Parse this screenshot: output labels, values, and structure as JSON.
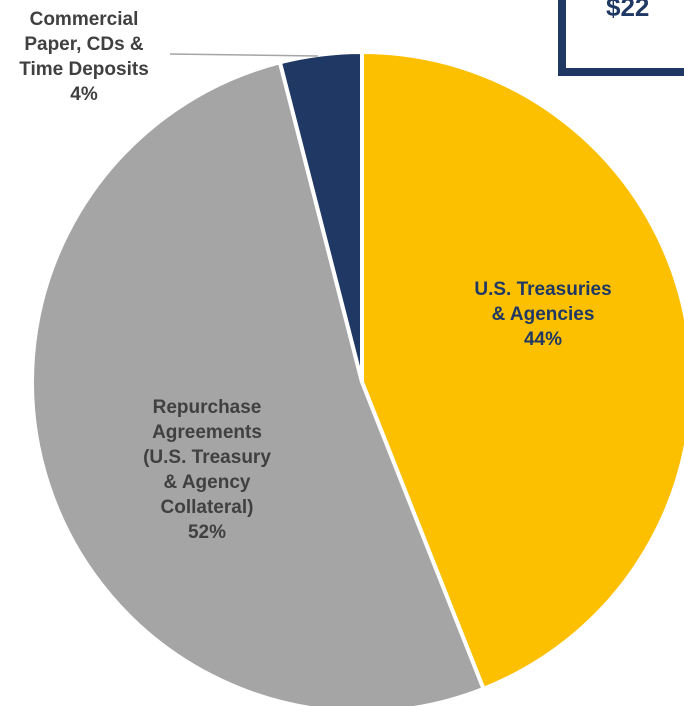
{
  "header": {
    "total_label": "$22"
  },
  "colors": {
    "treasuries": "#fcc000",
    "repo": "#a5a5a5",
    "commercial": "#1f3864",
    "navy_text": "#1f3864",
    "label_dark": "#404040",
    "label_on_gold": "#1f3864"
  },
  "chart_data": {
    "type": "pie",
    "title": "",
    "categories": [
      "U.S. Treasuries & Agencies",
      "Repurchase Agreements (U.S. Treasury & Agency Collateral)",
      "Commercial Paper, CDs & Time Deposits"
    ],
    "values": [
      44,
      52,
      4
    ],
    "unit": "%",
    "labels": [
      {
        "lines": [
          "U.S. Treasuries",
          "& Agencies"
        ],
        "pct": "44%"
      },
      {
        "lines": [
          "Repurchase",
          "Agreements",
          "(U.S. Treasury",
          "& Agency",
          "Collateral)"
        ],
        "pct": "52%"
      },
      {
        "lines": [
          "Commercial",
          "Paper, CDs &",
          "Time Deposits"
        ],
        "pct": "4%"
      }
    ]
  }
}
